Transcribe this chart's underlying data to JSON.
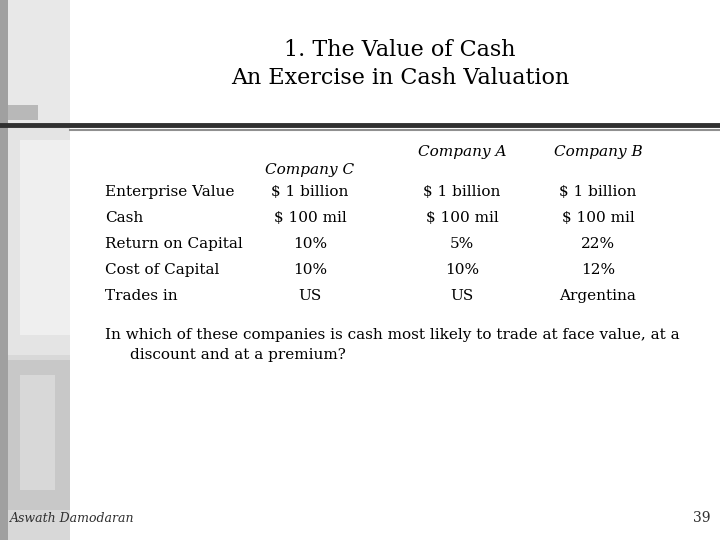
{
  "title_line1": "1. The Value of Cash",
  "title_line2": "An Exercise in Cash Valuation",
  "background_color": "#ffffff",
  "col_headers_row1": [
    "Company A",
    "Company B"
  ],
  "col_headers_row2": [
    "Company C"
  ],
  "row_labels": [
    "Enterprise Value",
    "Cash",
    "Return on Capital",
    "Cost of Capital",
    "Trades in"
  ],
  "data": [
    [
      "$ 1 billion",
      "$ 1 billion",
      "$ 1 billion"
    ],
    [
      "$ 100 mil",
      "$ 100 mil",
      "$ 100 mil"
    ],
    [
      "10%",
      "5%",
      "22%"
    ],
    [
      "10%",
      "10%",
      "12%"
    ],
    [
      "US",
      "US",
      "Argentina"
    ]
  ],
  "footer_text1": "In which of these companies is cash most likely to trade at face value, at a",
  "footer_text2": "discount and at a premium?",
  "author": "Aswath Damodaran",
  "page_number": "39",
  "sidebar_colors": [
    "#b0b0b0",
    "#d8d8d8",
    "#e8e8e8",
    "#f0f0f0"
  ],
  "table_block_color": "#e0e0e0",
  "lower_block_color": "#cccccc"
}
